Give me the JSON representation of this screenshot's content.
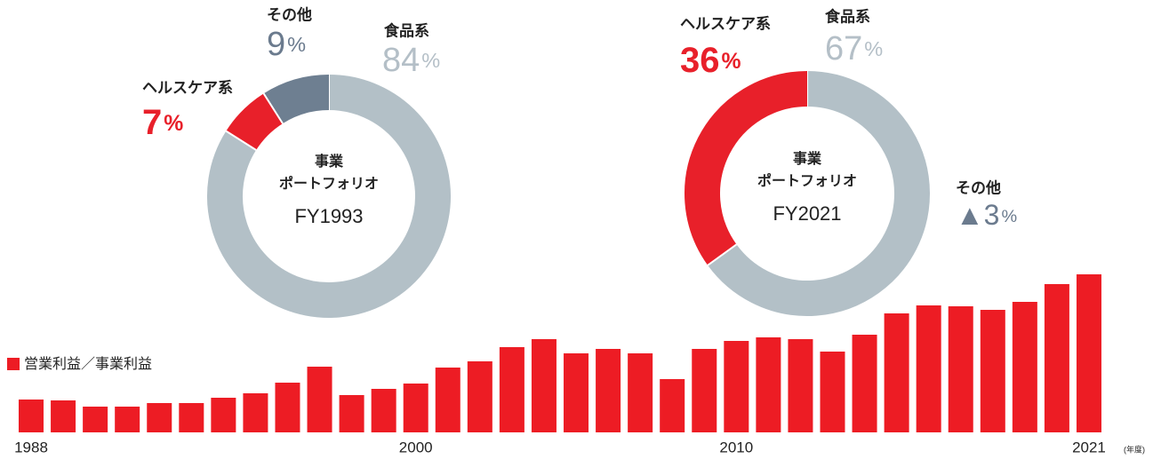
{
  "chart_data": [
    {
      "type": "pie",
      "center_text": [
        "事業",
        "ポートフォリオ",
        "FY1993"
      ],
      "unit": "%",
      "categories": [
        "食品系",
        "ヘルスケア系",
        "その他"
      ],
      "values": [
        84,
        7,
        9
      ],
      "colors": [
        "#b3c0c7",
        "#e8202a",
        "#6e7f91"
      ],
      "label_colors": [
        "#b4bfc7",
        "#e8202a",
        "#6b7b8e"
      ],
      "name_colors": [
        "#222222",
        "#e8202a",
        "#222222"
      ]
    },
    {
      "type": "pie",
      "center_text": [
        "事業",
        "ポートフォリオ",
        "FY2021"
      ],
      "unit": "%",
      "categories": [
        "食品系",
        "ヘルスケア系",
        "その他"
      ],
      "values": [
        67,
        36,
        -3
      ],
      "value_labels": [
        "67",
        "36",
        "▲3"
      ],
      "colors": [
        "#b3c0c7",
        "#e8202a",
        "#6e7f91"
      ],
      "label_colors": [
        "#b4bfc7",
        "#e8202a",
        "#6b7b8e"
      ],
      "name_colors": [
        "#222222",
        "#e8202a",
        "#222222"
      ]
    },
    {
      "type": "bar",
      "legend": "営業利益／事業利益",
      "x_unit": "(年度)",
      "color": "#ed1c24",
      "categories": [
        "1988",
        null,
        null,
        null,
        null,
        null,
        null,
        null,
        null,
        null,
        null,
        null,
        "2000",
        null,
        null,
        null,
        null,
        null,
        null,
        null,
        null,
        null,
        "2010",
        null,
        null,
        null,
        null,
        null,
        null,
        null,
        null,
        null,
        null,
        "2021"
      ],
      "values": [
        37,
        36,
        29,
        29,
        33,
        33,
        39,
        44,
        56,
        74,
        42,
        49,
        55,
        73,
        80,
        96,
        105,
        89,
        94,
        89,
        60,
        94,
        103,
        107,
        105,
        91,
        110,
        134,
        143,
        142,
        138,
        147,
        167,
        178
      ]
    }
  ]
}
